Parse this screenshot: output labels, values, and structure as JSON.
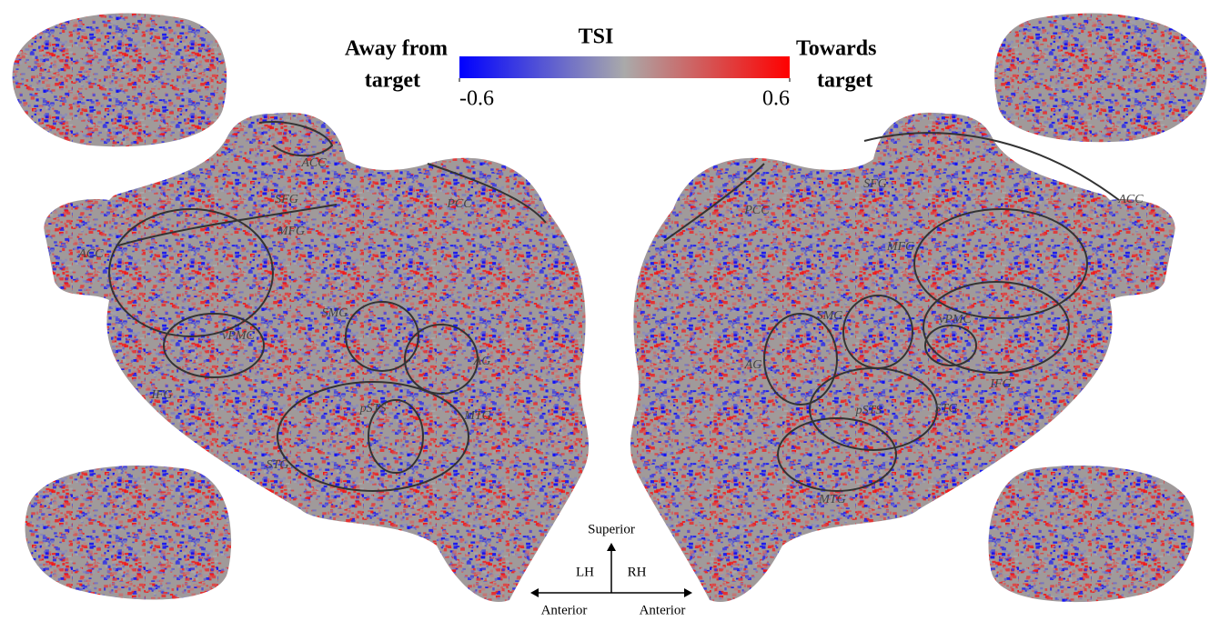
{
  "colorbar": {
    "title": "TSI",
    "left_label": [
      "Away from",
      "target"
    ],
    "right_label": [
      "Towards",
      "target"
    ],
    "range": [
      -0.6,
      0.6
    ],
    "ticks": [
      -0.6,
      0.6
    ],
    "colors": [
      "#0000ff",
      "#aaaaaa",
      "#ff0000"
    ]
  },
  "left_hemisphere": {
    "regions": [
      "ACC",
      "SFG",
      "MFG",
      "PCC",
      "ACC",
      "SMG",
      "vPMC",
      "AG",
      "IFG",
      "pSTS",
      "MTG",
      "STG"
    ]
  },
  "right_hemisphere": {
    "regions": [
      "SFG",
      "PCC",
      "ACC",
      "MFG",
      "SMG",
      "vPMC",
      "AG",
      "IFG",
      "pSTS",
      "STG",
      "MTG"
    ]
  },
  "orientation": {
    "up": "Superior",
    "left_hemisphere": "LH",
    "right_hemisphere": "RH",
    "left": "Anterior",
    "right": "Anterior"
  }
}
